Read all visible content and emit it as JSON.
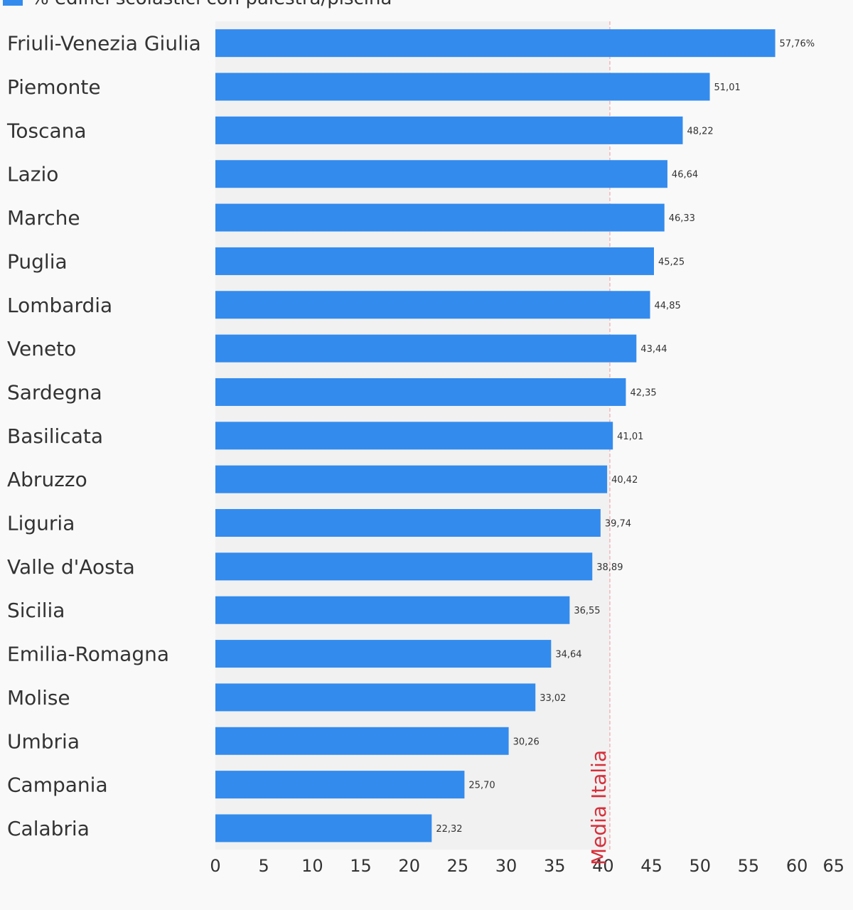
{
  "chart_data": {
    "type": "bar",
    "orientation": "horizontal",
    "legend": "% edifici scolastici con palestra/piscina",
    "legend_position": "top-left",
    "categories": [
      "Friuli-Venezia Giulia",
      "Piemonte",
      "Toscana",
      "Lazio",
      "Marche",
      "Puglia",
      "Lombardia",
      "Veneto",
      "Sardegna",
      "Basilicata",
      "Abruzzo",
      "Liguria",
      "Valle d'Aosta",
      "Sicilia",
      "Emilia-Romagna",
      "Molise",
      "Umbria",
      "Campania",
      "Calabria"
    ],
    "values": [
      57.76,
      51.01,
      48.22,
      46.64,
      46.33,
      45.25,
      44.85,
      43.44,
      42.35,
      41.01,
      40.42,
      39.74,
      38.89,
      36.55,
      34.64,
      33.02,
      30.26,
      25.7,
      22.32
    ],
    "value_labels": [
      "57,76%",
      "51,01",
      "48,22",
      "46,64",
      "46,33",
      "45,25",
      "44,85",
      "43,44",
      "42,35",
      "41,01",
      "40,42",
      "39,74",
      "38,89",
      "36,55",
      "34,64",
      "33,02",
      "30,26",
      "25,70",
      "22,32"
    ],
    "xticks": [
      0,
      5,
      10,
      15,
      20,
      25,
      30,
      35,
      40,
      45,
      50,
      55,
      60,
      65
    ],
    "xlim": [
      0,
      65
    ],
    "reference_line": {
      "label": "Media Italia",
      "value": 40.7
    },
    "bar_color": "#338bed",
    "reference_color": "#d62f3a",
    "plot_bg_below_reference": "#f1f1f1",
    "title": "",
    "xlabel": "",
    "ylabel": ""
  }
}
